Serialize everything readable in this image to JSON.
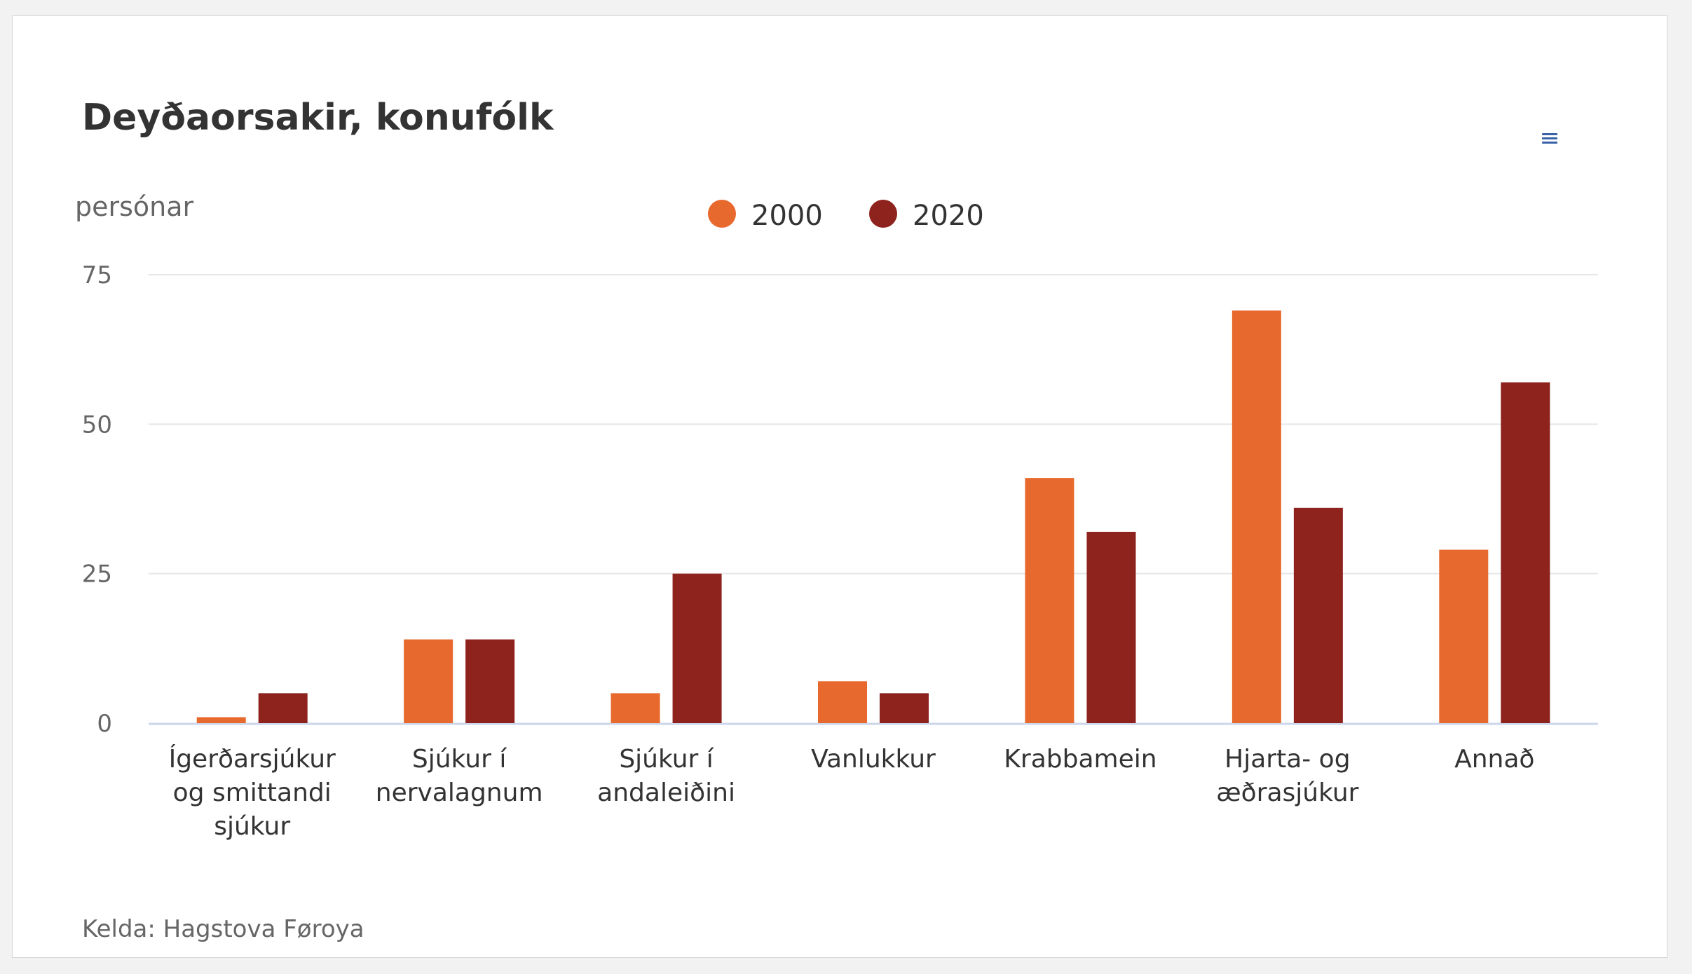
{
  "title": "Deyðaorsakir, konufólk",
  "source": "Kelda: Hagstova Føroya",
  "menu_icon": "hamburger-menu-icon",
  "colors": {
    "series_2000": "#e8692e",
    "series_2020": "#8e221d",
    "grid": "#e6e6e6",
    "axis": "#ccd6eb"
  },
  "chart_data": {
    "type": "bar",
    "ylabel": "persónar",
    "ylim": [
      0,
      75
    ],
    "yticks": [
      0,
      25,
      50,
      75
    ],
    "grid": true,
    "legend_position": "top-center",
    "categories": [
      [
        "Ígerðarsjúkur",
        "og smittandi",
        "sjúkur"
      ],
      [
        "Sjúkur í",
        "nervalagnum"
      ],
      [
        "Sjúkur í",
        "andaleiðini"
      ],
      [
        "Vanlukkur"
      ],
      [
        "Krabbamein"
      ],
      [
        "Hjarta- og",
        "æðrasjúkur"
      ],
      [
        "Annað"
      ]
    ],
    "series": [
      {
        "name": "2000",
        "color": "#e8692e",
        "values": [
          1,
          14,
          5,
          7,
          41,
          69,
          29
        ]
      },
      {
        "name": "2020",
        "color": "#8e221d",
        "values": [
          5,
          14,
          25,
          5,
          32,
          36,
          57
        ]
      }
    ]
  }
}
